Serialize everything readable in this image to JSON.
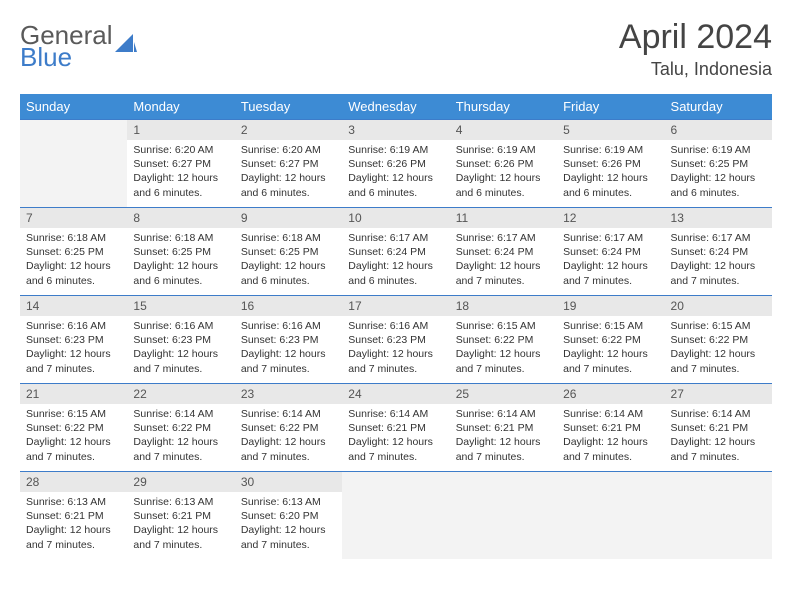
{
  "logo": {
    "text_general": "General",
    "text_blue": "Blue"
  },
  "title": "April 2024",
  "location": "Talu, Indonesia",
  "colors": {
    "header_bg": "#3d8bd4",
    "header_text": "#ffffff",
    "daynum_bg": "#e8e8e8",
    "empty_bg": "#f3f3f3",
    "border": "#3d7cc9",
    "logo_gray": "#5a5a5a",
    "logo_blue": "#3d7cc9"
  },
  "weekdays": [
    "Sunday",
    "Monday",
    "Tuesday",
    "Wednesday",
    "Thursday",
    "Friday",
    "Saturday"
  ],
  "weeks": [
    [
      null,
      {
        "n": "1",
        "sr": "Sunrise: 6:20 AM",
        "ss": "Sunset: 6:27 PM",
        "dl": "Daylight: 12 hours and 6 minutes."
      },
      {
        "n": "2",
        "sr": "Sunrise: 6:20 AM",
        "ss": "Sunset: 6:27 PM",
        "dl": "Daylight: 12 hours and 6 minutes."
      },
      {
        "n": "3",
        "sr": "Sunrise: 6:19 AM",
        "ss": "Sunset: 6:26 PM",
        "dl": "Daylight: 12 hours and 6 minutes."
      },
      {
        "n": "4",
        "sr": "Sunrise: 6:19 AM",
        "ss": "Sunset: 6:26 PM",
        "dl": "Daylight: 12 hours and 6 minutes."
      },
      {
        "n": "5",
        "sr": "Sunrise: 6:19 AM",
        "ss": "Sunset: 6:26 PM",
        "dl": "Daylight: 12 hours and 6 minutes."
      },
      {
        "n": "6",
        "sr": "Sunrise: 6:19 AM",
        "ss": "Sunset: 6:25 PM",
        "dl": "Daylight: 12 hours and 6 minutes."
      }
    ],
    [
      {
        "n": "7",
        "sr": "Sunrise: 6:18 AM",
        "ss": "Sunset: 6:25 PM",
        "dl": "Daylight: 12 hours and 6 minutes."
      },
      {
        "n": "8",
        "sr": "Sunrise: 6:18 AM",
        "ss": "Sunset: 6:25 PM",
        "dl": "Daylight: 12 hours and 6 minutes."
      },
      {
        "n": "9",
        "sr": "Sunrise: 6:18 AM",
        "ss": "Sunset: 6:25 PM",
        "dl": "Daylight: 12 hours and 6 minutes."
      },
      {
        "n": "10",
        "sr": "Sunrise: 6:17 AM",
        "ss": "Sunset: 6:24 PM",
        "dl": "Daylight: 12 hours and 6 minutes."
      },
      {
        "n": "11",
        "sr": "Sunrise: 6:17 AM",
        "ss": "Sunset: 6:24 PM",
        "dl": "Daylight: 12 hours and 7 minutes."
      },
      {
        "n": "12",
        "sr": "Sunrise: 6:17 AM",
        "ss": "Sunset: 6:24 PM",
        "dl": "Daylight: 12 hours and 7 minutes."
      },
      {
        "n": "13",
        "sr": "Sunrise: 6:17 AM",
        "ss": "Sunset: 6:24 PM",
        "dl": "Daylight: 12 hours and 7 minutes."
      }
    ],
    [
      {
        "n": "14",
        "sr": "Sunrise: 6:16 AM",
        "ss": "Sunset: 6:23 PM",
        "dl": "Daylight: 12 hours and 7 minutes."
      },
      {
        "n": "15",
        "sr": "Sunrise: 6:16 AM",
        "ss": "Sunset: 6:23 PM",
        "dl": "Daylight: 12 hours and 7 minutes."
      },
      {
        "n": "16",
        "sr": "Sunrise: 6:16 AM",
        "ss": "Sunset: 6:23 PM",
        "dl": "Daylight: 12 hours and 7 minutes."
      },
      {
        "n": "17",
        "sr": "Sunrise: 6:16 AM",
        "ss": "Sunset: 6:23 PM",
        "dl": "Daylight: 12 hours and 7 minutes."
      },
      {
        "n": "18",
        "sr": "Sunrise: 6:15 AM",
        "ss": "Sunset: 6:22 PM",
        "dl": "Daylight: 12 hours and 7 minutes."
      },
      {
        "n": "19",
        "sr": "Sunrise: 6:15 AM",
        "ss": "Sunset: 6:22 PM",
        "dl": "Daylight: 12 hours and 7 minutes."
      },
      {
        "n": "20",
        "sr": "Sunrise: 6:15 AM",
        "ss": "Sunset: 6:22 PM",
        "dl": "Daylight: 12 hours and 7 minutes."
      }
    ],
    [
      {
        "n": "21",
        "sr": "Sunrise: 6:15 AM",
        "ss": "Sunset: 6:22 PM",
        "dl": "Daylight: 12 hours and 7 minutes."
      },
      {
        "n": "22",
        "sr": "Sunrise: 6:14 AM",
        "ss": "Sunset: 6:22 PM",
        "dl": "Daylight: 12 hours and 7 minutes."
      },
      {
        "n": "23",
        "sr": "Sunrise: 6:14 AM",
        "ss": "Sunset: 6:22 PM",
        "dl": "Daylight: 12 hours and 7 minutes."
      },
      {
        "n": "24",
        "sr": "Sunrise: 6:14 AM",
        "ss": "Sunset: 6:21 PM",
        "dl": "Daylight: 12 hours and 7 minutes."
      },
      {
        "n": "25",
        "sr": "Sunrise: 6:14 AM",
        "ss": "Sunset: 6:21 PM",
        "dl": "Daylight: 12 hours and 7 minutes."
      },
      {
        "n": "26",
        "sr": "Sunrise: 6:14 AM",
        "ss": "Sunset: 6:21 PM",
        "dl": "Daylight: 12 hours and 7 minutes."
      },
      {
        "n": "27",
        "sr": "Sunrise: 6:14 AM",
        "ss": "Sunset: 6:21 PM",
        "dl": "Daylight: 12 hours and 7 minutes."
      }
    ],
    [
      {
        "n": "28",
        "sr": "Sunrise: 6:13 AM",
        "ss": "Sunset: 6:21 PM",
        "dl": "Daylight: 12 hours and 7 minutes."
      },
      {
        "n": "29",
        "sr": "Sunrise: 6:13 AM",
        "ss": "Sunset: 6:21 PM",
        "dl": "Daylight: 12 hours and 7 minutes."
      },
      {
        "n": "30",
        "sr": "Sunrise: 6:13 AM",
        "ss": "Sunset: 6:20 PM",
        "dl": "Daylight: 12 hours and 7 minutes."
      },
      null,
      null,
      null,
      null
    ]
  ]
}
